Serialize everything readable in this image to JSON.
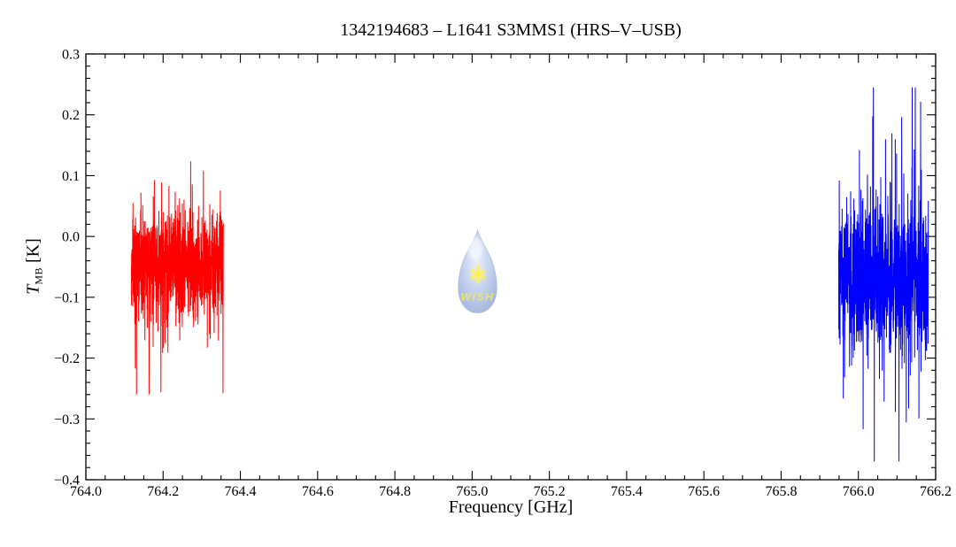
{
  "title": "1342194683 – L1641 S3MMS1 (HRS–V–USB)",
  "axes": {
    "xlabel": "Frequency [GHz]",
    "ylabel_symbol": "T",
    "ylabel_subscript": "MB",
    "ylabel_unit": "[K]"
  },
  "watermark": {
    "text": "WISH",
    "drop_fill_top": "#e7eefb",
    "drop_fill_mid": "#c3d1ef",
    "drop_fill_edge": "#97abd9",
    "star_color": "#ffef3d",
    "text_color": "#ece74f"
  },
  "chart_data": {
    "type": "line",
    "title": "1342194683 – L1641 S3MMS1 (HRS–V–USB)",
    "xlabel": "Frequency [GHz]",
    "ylabel": "T_MB [K]",
    "xlim": [
      764.0,
      766.2
    ],
    "ylim": [
      -0.4,
      0.3
    ],
    "grid": false,
    "legend": false,
    "frame_color": "#000000",
    "x_ticks": {
      "major_step": 0.2,
      "minor_step": 0.05,
      "values": [
        764.0,
        764.2,
        764.4,
        764.6,
        764.8,
        765.0,
        765.2,
        765.4,
        765.6,
        765.8,
        766.0,
        766.2
      ],
      "labels": [
        "764.0",
        "764.2",
        "764.4",
        "764.6",
        "764.8",
        "765.0",
        "765.2",
        "765.4",
        "765.6",
        "765.8",
        "766.0",
        "766.2"
      ]
    },
    "y_ticks": {
      "major_step": 0.1,
      "minor_step": 0.02,
      "values": [
        0.3,
        0.2,
        0.1,
        0.0,
        -0.1,
        -0.2,
        -0.3,
        -0.4
      ],
      "labels": [
        "0.3",
        "0.2",
        "0.1",
        "0.0",
        "−0.1",
        "−0.2",
        "−0.3",
        "−0.4"
      ]
    },
    "series": [
      {
        "name": "left-subband-red",
        "color": "#ff0000",
        "x_start": 764.118,
        "x_end": 764.356,
        "baseline": -0.045,
        "sigma": 0.045,
        "spike_prob": 0.1,
        "spike_scale": 2.3,
        "clip_max": 0.23,
        "clip_min": -0.26,
        "n_points": 900,
        "seed": 20130617
      },
      {
        "name": "right-subband-blue",
        "color": "#0000ff",
        "x_start": 765.949,
        "x_end": 766.181,
        "baseline": -0.07,
        "sigma": 0.055,
        "spike_prob": 0.12,
        "spike_scale": 2.4,
        "clip_max": 0.245,
        "clip_min": -0.37,
        "n_points": 900,
        "seed": 97
      }
    ]
  }
}
